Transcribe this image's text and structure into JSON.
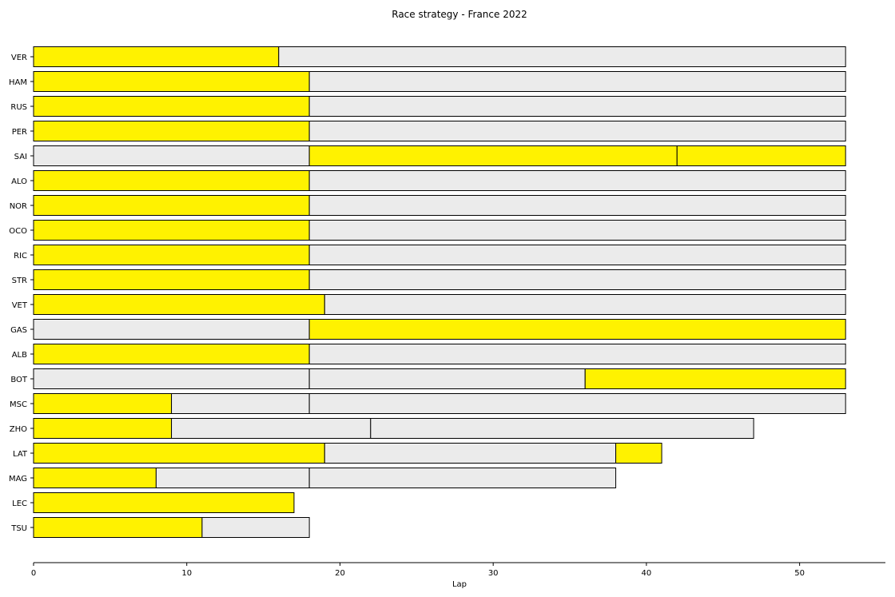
{
  "chart_data": {
    "type": "bar",
    "orientation": "horizontal-stacked",
    "title": "Race strategy - France 2022",
    "xlabel": "Lap",
    "ylabel": "",
    "xlim": [
      0,
      55.6
    ],
    "xticks": [
      0,
      10,
      20,
      30,
      40,
      50
    ],
    "grid": false,
    "legend": "none",
    "colors": {
      "medium": "#FFF200",
      "hard": "#EBEBEB",
      "edge": "#000000"
    },
    "drivers": [
      {
        "name": "VER",
        "stints": [
          {
            "compound": "MEDIUM",
            "start": 0,
            "laps": 16
          },
          {
            "compound": "HARD",
            "start": 16,
            "laps": 37
          }
        ]
      },
      {
        "name": "HAM",
        "stints": [
          {
            "compound": "MEDIUM",
            "start": 0,
            "laps": 18
          },
          {
            "compound": "HARD",
            "start": 18,
            "laps": 35
          }
        ]
      },
      {
        "name": "RUS",
        "stints": [
          {
            "compound": "MEDIUM",
            "start": 0,
            "laps": 18
          },
          {
            "compound": "HARD",
            "start": 18,
            "laps": 35
          }
        ]
      },
      {
        "name": "PER",
        "stints": [
          {
            "compound": "MEDIUM",
            "start": 0,
            "laps": 18
          },
          {
            "compound": "HARD",
            "start": 18,
            "laps": 35
          }
        ]
      },
      {
        "name": "SAI",
        "stints": [
          {
            "compound": "HARD",
            "start": 0,
            "laps": 18
          },
          {
            "compound": "MEDIUM",
            "start": 18,
            "laps": 24
          },
          {
            "compound": "MEDIUM",
            "start": 42,
            "laps": 11
          }
        ]
      },
      {
        "name": "ALO",
        "stints": [
          {
            "compound": "MEDIUM",
            "start": 0,
            "laps": 18
          },
          {
            "compound": "HARD",
            "start": 18,
            "laps": 35
          }
        ]
      },
      {
        "name": "NOR",
        "stints": [
          {
            "compound": "MEDIUM",
            "start": 0,
            "laps": 18
          },
          {
            "compound": "HARD",
            "start": 18,
            "laps": 35
          }
        ]
      },
      {
        "name": "OCO",
        "stints": [
          {
            "compound": "MEDIUM",
            "start": 0,
            "laps": 18
          },
          {
            "compound": "HARD",
            "start": 18,
            "laps": 35
          }
        ]
      },
      {
        "name": "RIC",
        "stints": [
          {
            "compound": "MEDIUM",
            "start": 0,
            "laps": 18
          },
          {
            "compound": "HARD",
            "start": 18,
            "laps": 35
          }
        ]
      },
      {
        "name": "STR",
        "stints": [
          {
            "compound": "MEDIUM",
            "start": 0,
            "laps": 18
          },
          {
            "compound": "HARD",
            "start": 18,
            "laps": 35
          }
        ]
      },
      {
        "name": "VET",
        "stints": [
          {
            "compound": "MEDIUM",
            "start": 0,
            "laps": 19
          },
          {
            "compound": "HARD",
            "start": 19,
            "laps": 34
          }
        ]
      },
      {
        "name": "GAS",
        "stints": [
          {
            "compound": "HARD",
            "start": 0,
            "laps": 18
          },
          {
            "compound": "MEDIUM",
            "start": 18,
            "laps": 35
          }
        ]
      },
      {
        "name": "ALB",
        "stints": [
          {
            "compound": "MEDIUM",
            "start": 0,
            "laps": 18
          },
          {
            "compound": "HARD",
            "start": 18,
            "laps": 35
          }
        ]
      },
      {
        "name": "BOT",
        "stints": [
          {
            "compound": "HARD",
            "start": 0,
            "laps": 18
          },
          {
            "compound": "HARD",
            "start": 18,
            "laps": 18
          },
          {
            "compound": "MEDIUM",
            "start": 36,
            "laps": 17
          }
        ]
      },
      {
        "name": "MSC",
        "stints": [
          {
            "compound": "MEDIUM",
            "start": 0,
            "laps": 9
          },
          {
            "compound": "HARD",
            "start": 9,
            "laps": 9
          },
          {
            "compound": "HARD",
            "start": 18,
            "laps": 35
          }
        ]
      },
      {
        "name": "ZHO",
        "stints": [
          {
            "compound": "MEDIUM",
            "start": 0,
            "laps": 9
          },
          {
            "compound": "HARD",
            "start": 9,
            "laps": 13
          },
          {
            "compound": "HARD",
            "start": 22,
            "laps": 25
          }
        ]
      },
      {
        "name": "LAT",
        "stints": [
          {
            "compound": "MEDIUM",
            "start": 0,
            "laps": 19
          },
          {
            "compound": "HARD",
            "start": 19,
            "laps": 19
          },
          {
            "compound": "MEDIUM",
            "start": 38,
            "laps": 3
          }
        ]
      },
      {
        "name": "MAG",
        "stints": [
          {
            "compound": "MEDIUM",
            "start": 0,
            "laps": 8
          },
          {
            "compound": "HARD",
            "start": 8,
            "laps": 10
          },
          {
            "compound": "HARD",
            "start": 18,
            "laps": 20
          }
        ]
      },
      {
        "name": "LEC",
        "stints": [
          {
            "compound": "MEDIUM",
            "start": 0,
            "laps": 17
          }
        ]
      },
      {
        "name": "TSU",
        "stints": [
          {
            "compound": "MEDIUM",
            "start": 0,
            "laps": 11
          },
          {
            "compound": "HARD",
            "start": 11,
            "laps": 7
          }
        ]
      }
    ]
  }
}
